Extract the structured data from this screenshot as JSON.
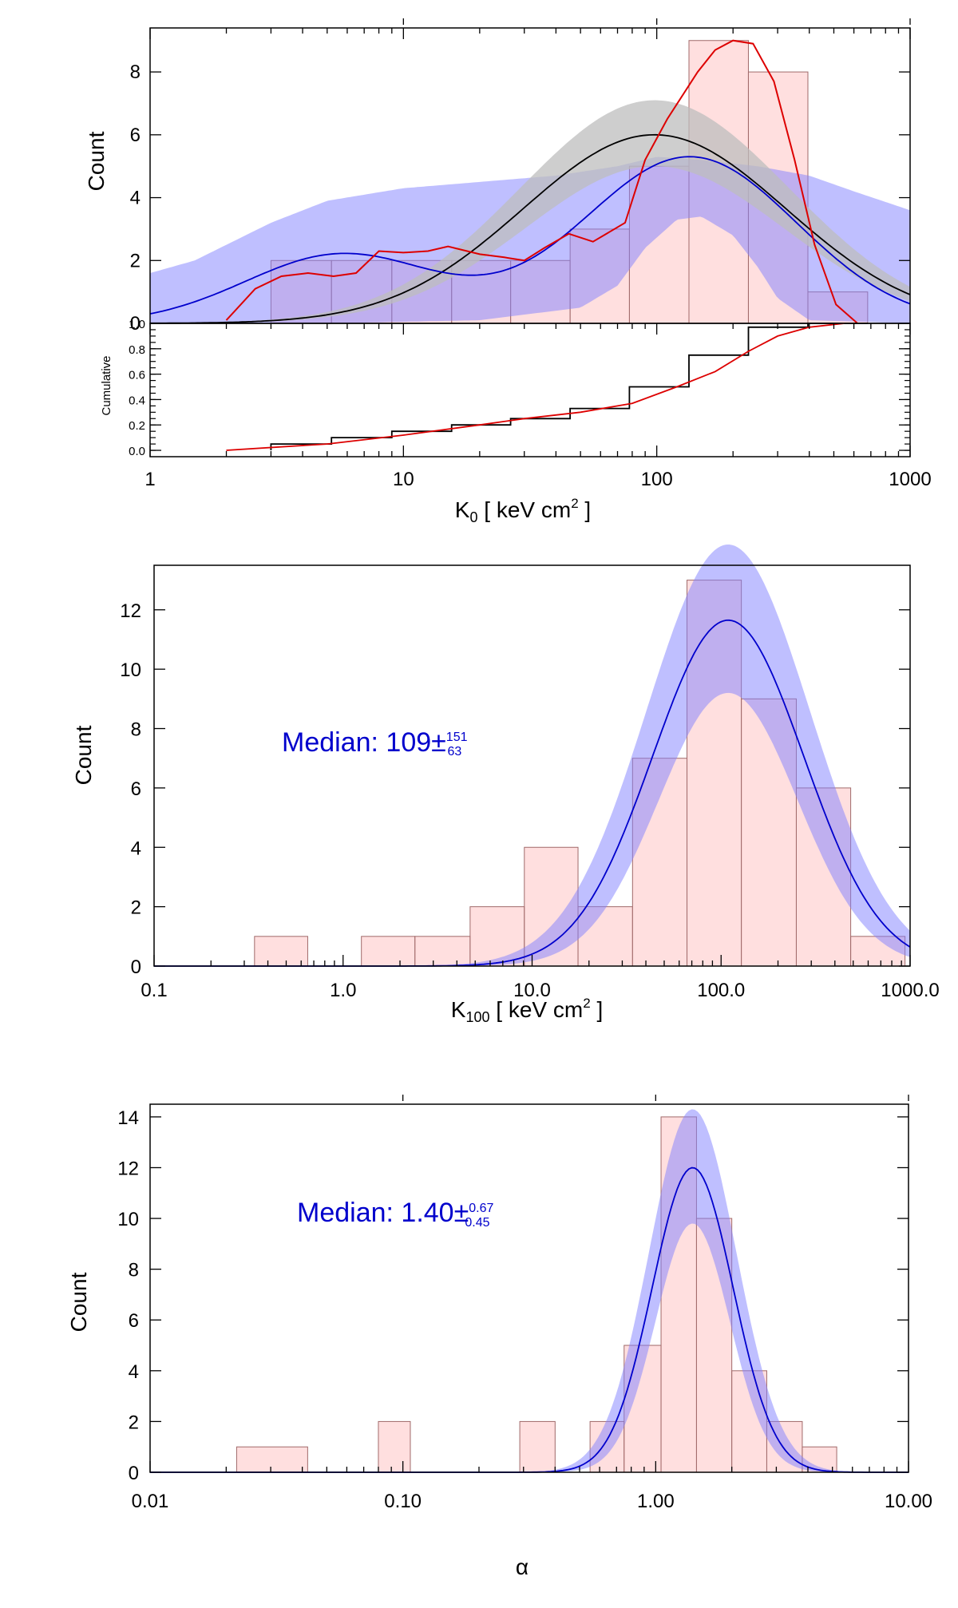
{
  "charts": [
    {
      "id": "p1",
      "type": "histogram-with-model",
      "xlog": true,
      "xlim": [
        1,
        1000
      ],
      "ylim": [
        0,
        9.4
      ],
      "xlabel": {
        "base": "K",
        "sub": "0",
        "text": " [ keV cm",
        "sup": "2",
        "tail": " ]"
      },
      "ylabel": "Count",
      "xticks": [
        {
          "v": 1,
          "label": "1"
        },
        {
          "v": 10,
          "label": "10"
        },
        {
          "v": 100,
          "label": "100"
        },
        {
          "v": 1000,
          "label": "1000"
        }
      ],
      "yticks": [
        0,
        2,
        4,
        6,
        8
      ],
      "bins": [
        {
          "lo": 3.0,
          "hi": 5.2,
          "c": 2
        },
        {
          "lo": 5.2,
          "hi": 9.0,
          "c": 2
        },
        {
          "lo": 9.0,
          "hi": 15.5,
          "c": 2
        },
        {
          "lo": 15.5,
          "hi": 26.5,
          "c": 2
        },
        {
          "lo": 26.5,
          "hi": 45.5,
          "c": 2
        },
        {
          "lo": 45.5,
          "hi": 78,
          "c": 3
        },
        {
          "lo": 78,
          "hi": 134,
          "c": 5
        },
        {
          "lo": 134,
          "hi": 230,
          "c": 9
        },
        {
          "lo": 230,
          "hi": 395,
          "c": 8
        },
        {
          "lo": 395,
          "hi": 680,
          "c": 1
        }
      ],
      "gauss_fit": {
        "color": "#000000",
        "peak": 6.0,
        "center": 98,
        "sigma_dex": 0.52,
        "band_upper_peak": 7.1,
        "band_lower_peak": 5.0,
        "band_color": "#bdbdbd"
      },
      "bimodal_fit": {
        "color": "#0000cc",
        "components": [
          {
            "amp": 2.2,
            "center": 5.7,
            "sigma_dex": 0.38
          },
          {
            "amp": 5.3,
            "center": 135,
            "sigma_dex": 0.42
          }
        ]
      },
      "blue_band": {
        "upper": [
          [
            1,
            1.6
          ],
          [
            1.5,
            2.0
          ],
          [
            2,
            2.5
          ],
          [
            3,
            3.2
          ],
          [
            5,
            3.9
          ],
          [
            10,
            4.3
          ],
          [
            20,
            4.5
          ],
          [
            40,
            4.7
          ],
          [
            70,
            5.0
          ],
          [
            100,
            5.3
          ],
          [
            150,
            5.2
          ],
          [
            250,
            5.0
          ],
          [
            400,
            4.7
          ],
          [
            600,
            4.2
          ],
          [
            1000,
            3.6
          ]
        ],
        "lower": [
          [
            1,
            0
          ],
          [
            5,
            0
          ],
          [
            20,
            0.1
          ],
          [
            50,
            0.5
          ],
          [
            70,
            1.2
          ],
          [
            90,
            2.4
          ],
          [
            120,
            3.3
          ],
          [
            150,
            3.4
          ],
          [
            200,
            2.8
          ],
          [
            250,
            1.8
          ],
          [
            300,
            0.8
          ],
          [
            400,
            0.1
          ],
          [
            1000,
            0
          ]
        ],
        "color": "#8080ff"
      },
      "red_curve": {
        "color": "#dd0000",
        "points": [
          [
            2,
            0.1
          ],
          [
            2.6,
            1.1
          ],
          [
            3.3,
            1.5
          ],
          [
            4.2,
            1.6
          ],
          [
            5.3,
            1.5
          ],
          [
            6.5,
            1.6
          ],
          [
            8,
            2.3
          ],
          [
            10,
            2.25
          ],
          [
            12.5,
            2.3
          ],
          [
            15,
            2.45
          ],
          [
            20,
            2.2
          ],
          [
            25,
            2.1
          ],
          [
            30,
            2.0
          ],
          [
            36,
            2.4
          ],
          [
            45,
            2.85
          ],
          [
            56,
            2.6
          ],
          [
            75,
            3.2
          ],
          [
            90,
            5.2
          ],
          [
            110,
            6.5
          ],
          [
            145,
            8.0
          ],
          [
            170,
            8.7
          ],
          [
            200,
            9.0
          ],
          [
            240,
            8.9
          ],
          [
            290,
            7.7
          ],
          [
            350,
            5.2
          ],
          [
            420,
            2.5
          ],
          [
            510,
            0.6
          ],
          [
            620,
            0.0
          ]
        ]
      },
      "cumulative": {
        "ylabel": "Cumulative",
        "ylim": [
          -0.05,
          1.0
        ],
        "yticks": [
          {
            "v": 0.0,
            "label": "0.0"
          },
          {
            "v": 0.2,
            "label": "0.2"
          },
          {
            "v": 0.4,
            "label": "0.4"
          },
          {
            "v": 0.6,
            "label": "0.6"
          },
          {
            "v": 0.8,
            "label": "0.8"
          },
          {
            "v": 1.0,
            "label": "1.0"
          }
        ],
        "step": [
          [
            3.0,
            0.0
          ],
          [
            3.0,
            0.05
          ],
          [
            5.2,
            0.05
          ],
          [
            5.2,
            0.1
          ],
          [
            9.0,
            0.1
          ],
          [
            9.0,
            0.15
          ],
          [
            15.5,
            0.15
          ],
          [
            15.5,
            0.2
          ],
          [
            26.5,
            0.2
          ],
          [
            26.5,
            0.25
          ],
          [
            45.5,
            0.25
          ],
          [
            45.5,
            0.33
          ],
          [
            78,
            0.33
          ],
          [
            78,
            0.5
          ],
          [
            134,
            0.5
          ],
          [
            134,
            0.75
          ],
          [
            230,
            0.75
          ],
          [
            230,
            0.97
          ],
          [
            395,
            0.97
          ],
          [
            395,
            1.0
          ],
          [
            680,
            1.0
          ]
        ],
        "red": [
          [
            2,
            0
          ],
          [
            5,
            0.05
          ],
          [
            10,
            0.12
          ],
          [
            20,
            0.2
          ],
          [
            30,
            0.25
          ],
          [
            50,
            0.3
          ],
          [
            80,
            0.37
          ],
          [
            120,
            0.5
          ],
          [
            170,
            0.62
          ],
          [
            230,
            0.78
          ],
          [
            300,
            0.9
          ],
          [
            400,
            0.97
          ],
          [
            550,
            1.0
          ]
        ]
      }
    },
    {
      "id": "p2",
      "type": "histogram-with-model",
      "xlog": true,
      "xlim": [
        0.1,
        1000
      ],
      "ylim": [
        0,
        13.5
      ],
      "xlabel": {
        "base": "K",
        "sub": "100",
        "text": " [ keV cm",
        "sup": "2",
        "tail": " ]"
      },
      "ylabel": "Count",
      "xticks": [
        {
          "v": 0.1,
          "label": "0.1"
        },
        {
          "v": 1,
          "label": "1.0"
        },
        {
          "v": 10,
          "label": "10.0"
        },
        {
          "v": 100,
          "label": "100.0"
        },
        {
          "v": 1000,
          "label": "1000.0"
        }
      ],
      "yticks": [
        0,
        2,
        4,
        6,
        8,
        10,
        12
      ],
      "bins": [
        {
          "lo": 0.34,
          "hi": 0.65,
          "c": 1
        },
        {
          "lo": 1.25,
          "hi": 2.4,
          "c": 1
        },
        {
          "lo": 2.4,
          "hi": 4.7,
          "c": 1
        },
        {
          "lo": 4.7,
          "hi": 9.1,
          "c": 2
        },
        {
          "lo": 9.1,
          "hi": 17.5,
          "c": 4
        },
        {
          "lo": 17.5,
          "hi": 34,
          "c": 2
        },
        {
          "lo": 34,
          "hi": 66,
          "c": 7
        },
        {
          "lo": 66,
          "hi": 128,
          "c": 13
        },
        {
          "lo": 128,
          "hi": 250,
          "c": 9
        },
        {
          "lo": 250,
          "hi": 485,
          "c": 6
        },
        {
          "lo": 485,
          "hi": 940,
          "c": 1
        }
      ],
      "model": {
        "peak": 11.65,
        "center": 109,
        "sigma_dex": 0.4,
        "upper_peak": 14.2,
        "lower_peak": 9.2,
        "color": "#0000cc",
        "band_color": "#8080ff"
      },
      "median": {
        "label": "Median: 109±",
        "sup": "151",
        "sub": "63"
      }
    },
    {
      "id": "p3",
      "type": "histogram-with-model",
      "xlog": true,
      "xlim": [
        0.01,
        10
      ],
      "ylim": [
        0,
        14.5
      ],
      "xlabel": {
        "text": "α"
      },
      "ylabel": "Count",
      "xticks": [
        {
          "v": 0.01,
          "label": "0.01"
        },
        {
          "v": 0.1,
          "label": "0.10"
        },
        {
          "v": 1,
          "label": "1.00"
        },
        {
          "v": 10,
          "label": "10.00"
        }
      ],
      "yticks": [
        0,
        2,
        4,
        6,
        8,
        10,
        12,
        14
      ],
      "bins": [
        {
          "lo": 0.022,
          "hi": 0.042,
          "c": 1
        },
        {
          "lo": 0.08,
          "hi": 0.107,
          "c": 2
        },
        {
          "lo": 0.29,
          "hi": 0.4,
          "c": 2
        },
        {
          "lo": 0.55,
          "hi": 0.75,
          "c": 2
        },
        {
          "lo": 0.75,
          "hi": 1.05,
          "c": 5
        },
        {
          "lo": 1.05,
          "hi": 1.45,
          "c": 14
        },
        {
          "lo": 1.45,
          "hi": 2.0,
          "c": 10
        },
        {
          "lo": 2.0,
          "hi": 2.75,
          "c": 4
        },
        {
          "lo": 2.75,
          "hi": 3.8,
          "c": 2
        },
        {
          "lo": 3.8,
          "hi": 5.2,
          "c": 1
        }
      ],
      "model": {
        "peak": 12.0,
        "center": 1.4,
        "sigma_dex": 0.16,
        "upper_peak": 14.3,
        "lower_peak": 9.8,
        "color": "#0000cc",
        "band_color": "#8080ff"
      },
      "median": {
        "label": "Median: 1.40±",
        "sup": "0.67",
        "sub": "0.45"
      }
    }
  ]
}
